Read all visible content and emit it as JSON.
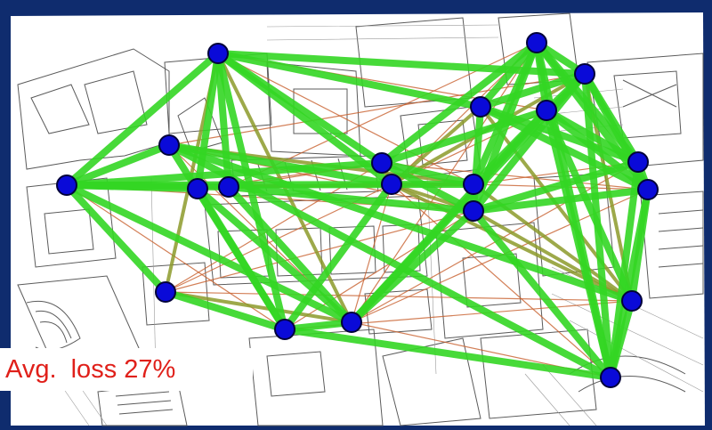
{
  "colors": {
    "good_link": "#33d624",
    "medium_link": "#8c9a2a",
    "poor_link": "#c8602e",
    "node_fill": "#0a0ad8",
    "node_stroke": "#02023a",
    "label_text": "#e0201a",
    "frame": "#0f2c6e"
  },
  "icons": {
    "node": "wireless-node-icon",
    "background": "floor-plan-image"
  },
  "network": {
    "nodes": [
      "n1",
      "n2",
      "n3",
      "n4",
      "n5",
      "n6",
      "n7",
      "n8",
      "n9",
      "n10",
      "n11",
      "n12",
      "n13",
      "n14",
      "n15",
      "n16",
      "n17",
      "n18",
      "n19",
      "n20"
    ],
    "links": [
      {
        "from": "n1",
        "to": "n2",
        "quality": "good"
      },
      {
        "from": "n1",
        "to": "n8",
        "quality": "good"
      },
      {
        "from": "n1",
        "to": "n11",
        "quality": "good"
      },
      {
        "from": "n1",
        "to": "n3",
        "quality": "good"
      },
      {
        "from": "n1",
        "to": "n6",
        "quality": "good"
      },
      {
        "from": "n1",
        "to": "n5",
        "quality": "good"
      },
      {
        "from": "n1",
        "to": "n4",
        "quality": "good"
      },
      {
        "from": "n1",
        "to": "n9",
        "quality": "good"
      },
      {
        "from": "n2",
        "to": "n5",
        "quality": "good"
      },
      {
        "from": "n2",
        "to": "n8",
        "quality": "good"
      },
      {
        "from": "n2",
        "to": "n16",
        "quality": "good"
      },
      {
        "from": "n2",
        "to": "n10",
        "quality": "good"
      },
      {
        "from": "n2",
        "to": "n13",
        "quality": "good"
      },
      {
        "from": "n2",
        "to": "n7",
        "quality": "good"
      },
      {
        "from": "n2",
        "to": "n4",
        "quality": "good"
      },
      {
        "from": "n2",
        "to": "n6",
        "quality": "medium"
      },
      {
        "from": "n3",
        "to": "n7",
        "quality": "good"
      },
      {
        "from": "n3",
        "to": "n19",
        "quality": "good"
      },
      {
        "from": "n3",
        "to": "n10",
        "quality": "good"
      },
      {
        "from": "n3",
        "to": "n11",
        "quality": "medium"
      },
      {
        "from": "n4",
        "to": "n7",
        "quality": "good"
      },
      {
        "from": "n4",
        "to": "n9",
        "quality": "good"
      },
      {
        "from": "n5",
        "to": "n12",
        "quality": "good"
      },
      {
        "from": "n5",
        "to": "n9",
        "quality": "good"
      },
      {
        "from": "n5",
        "to": "n11",
        "quality": "medium"
      },
      {
        "from": "n6",
        "to": "n9",
        "quality": "medium"
      },
      {
        "from": "n6",
        "to": "n7",
        "quality": "good"
      },
      {
        "from": "n7",
        "to": "n10",
        "quality": "good"
      },
      {
        "from": "n7",
        "to": "n20",
        "quality": "good"
      },
      {
        "from": "n7",
        "to": "n9",
        "quality": "good"
      },
      {
        "from": "n8",
        "to": "n15",
        "quality": "good"
      },
      {
        "from": "n8",
        "to": "n14",
        "quality": "good"
      },
      {
        "from": "n8",
        "to": "n11",
        "quality": "good"
      },
      {
        "from": "n8",
        "to": "n12",
        "quality": "good"
      },
      {
        "from": "n8",
        "to": "n10",
        "quality": "medium"
      },
      {
        "from": "n9",
        "to": "n12",
        "quality": "good"
      },
      {
        "from": "n9",
        "to": "n16",
        "quality": "good"
      },
      {
        "from": "n9",
        "to": "n15",
        "quality": "good"
      },
      {
        "from": "n10",
        "to": "n12",
        "quality": "medium"
      },
      {
        "from": "n10",
        "to": "n16",
        "quality": "medium"
      },
      {
        "from": "n10",
        "to": "n11",
        "quality": "medium"
      },
      {
        "from": "n11",
        "to": "n12",
        "quality": "good"
      },
      {
        "from": "n11",
        "to": "n14",
        "quality": "good"
      },
      {
        "from": "n11",
        "to": "n15",
        "quality": "good"
      },
      {
        "from": "n11",
        "to": "n19",
        "quality": "medium"
      },
      {
        "from": "n12",
        "to": "n16",
        "quality": "good"
      },
      {
        "from": "n12",
        "to": "n13",
        "quality": "good"
      },
      {
        "from": "n12",
        "to": "n14",
        "quality": "good"
      },
      {
        "from": "n12",
        "to": "n17",
        "quality": "good"
      },
      {
        "from": "n12",
        "to": "n18",
        "quality": "good"
      },
      {
        "from": "n12",
        "to": "n20",
        "quality": "good"
      },
      {
        "from": "n12",
        "to": "n19",
        "quality": "medium"
      },
      {
        "from": "n13",
        "to": "n14",
        "quality": "good"
      },
      {
        "from": "n13",
        "to": "n16",
        "quality": "good"
      },
      {
        "from": "n13",
        "to": "n17",
        "quality": "good"
      },
      {
        "from": "n13",
        "to": "n18",
        "quality": "good"
      },
      {
        "from": "n14",
        "to": "n16",
        "quality": "good"
      },
      {
        "from": "n14",
        "to": "n17",
        "quality": "good"
      },
      {
        "from": "n14",
        "to": "n18",
        "quality": "good"
      },
      {
        "from": "n14",
        "to": "n15",
        "quality": "good"
      },
      {
        "from": "n14",
        "to": "n20",
        "quality": "good"
      },
      {
        "from": "n15",
        "to": "n16",
        "quality": "good"
      },
      {
        "from": "n15",
        "to": "n17",
        "quality": "good"
      },
      {
        "from": "n15",
        "to": "n18",
        "quality": "good"
      },
      {
        "from": "n15",
        "to": "n20",
        "quality": "good"
      },
      {
        "from": "n16",
        "to": "n17",
        "quality": "good"
      },
      {
        "from": "n16",
        "to": "n18",
        "quality": "good"
      },
      {
        "from": "n16",
        "to": "n20",
        "quality": "good"
      },
      {
        "from": "n17",
        "to": "n18",
        "quality": "good"
      },
      {
        "from": "n17",
        "to": "n20",
        "quality": "good"
      },
      {
        "from": "n18",
        "to": "n19",
        "quality": "good"
      },
      {
        "from": "n18",
        "to": "n20",
        "quality": "good"
      },
      {
        "from": "n19",
        "to": "n20",
        "quality": "good"
      },
      {
        "from": "n3",
        "to": "n20",
        "quality": "good"
      },
      {
        "from": "n15",
        "to": "n19",
        "quality": "good"
      },
      {
        "from": "n16",
        "to": "n19",
        "quality": "medium"
      },
      {
        "from": "n13",
        "to": "n19",
        "quality": "medium"
      },
      {
        "from": "n13",
        "to": "n10",
        "quality": "medium"
      },
      {
        "from": "n10",
        "to": "n19",
        "quality": "medium"
      },
      {
        "from": "n5",
        "to": "n10",
        "quality": "medium"
      },
      {
        "from": "n2",
        "to": "n9",
        "quality": "medium"
      },
      {
        "from": "n1",
        "to": "n7",
        "quality": "poor"
      },
      {
        "from": "n1",
        "to": "n12",
        "quality": "poor"
      },
      {
        "from": "n3",
        "to": "n9",
        "quality": "poor"
      },
      {
        "from": "n4",
        "to": "n8",
        "quality": "poor"
      },
      {
        "from": "n5",
        "to": "n8",
        "quality": "poor"
      },
      {
        "from": "n6",
        "to": "n8",
        "quality": "poor"
      },
      {
        "from": "n6",
        "to": "n10",
        "quality": "poor"
      },
      {
        "from": "n4",
        "to": "n11",
        "quality": "poor"
      },
      {
        "from": "n9",
        "to": "n10",
        "quality": "poor"
      },
      {
        "from": "n9",
        "to": "n17",
        "quality": "poor"
      },
      {
        "from": "n9",
        "to": "n18",
        "quality": "poor"
      },
      {
        "from": "n9",
        "to": "n14",
        "quality": "poor"
      },
      {
        "from": "n10",
        "to": "n14",
        "quality": "poor"
      },
      {
        "from": "n10",
        "to": "n15",
        "quality": "poor"
      },
      {
        "from": "n11",
        "to": "n17",
        "quality": "poor"
      },
      {
        "from": "n11",
        "to": "n18",
        "quality": "poor"
      },
      {
        "from": "n8",
        "to": "n18",
        "quality": "poor"
      },
      {
        "from": "n6",
        "to": "n12",
        "quality": "poor"
      },
      {
        "from": "n7",
        "to": "n12",
        "quality": "poor"
      },
      {
        "from": "n3",
        "to": "n12",
        "quality": "poor"
      },
      {
        "from": "n5",
        "to": "n14",
        "quality": "poor"
      },
      {
        "from": "n1",
        "to": "n10",
        "quality": "poor"
      },
      {
        "from": "n4",
        "to": "n10",
        "quality": "poor"
      },
      {
        "from": "n2",
        "to": "n11",
        "quality": "poor"
      },
      {
        "from": "n6",
        "to": "n19",
        "quality": "poor"
      },
      {
        "from": "n7",
        "to": "n19",
        "quality": "poor"
      },
      {
        "from": "n10",
        "to": "n20",
        "quality": "poor"
      },
      {
        "from": "n9",
        "to": "n20",
        "quality": "poor"
      },
      {
        "from": "n3",
        "to": "n16",
        "quality": "poor"
      },
      {
        "from": "n2",
        "to": "n15",
        "quality": "poor"
      }
    ]
  },
  "summary": {
    "loss_label": "Avg.  loss 27%"
  }
}
